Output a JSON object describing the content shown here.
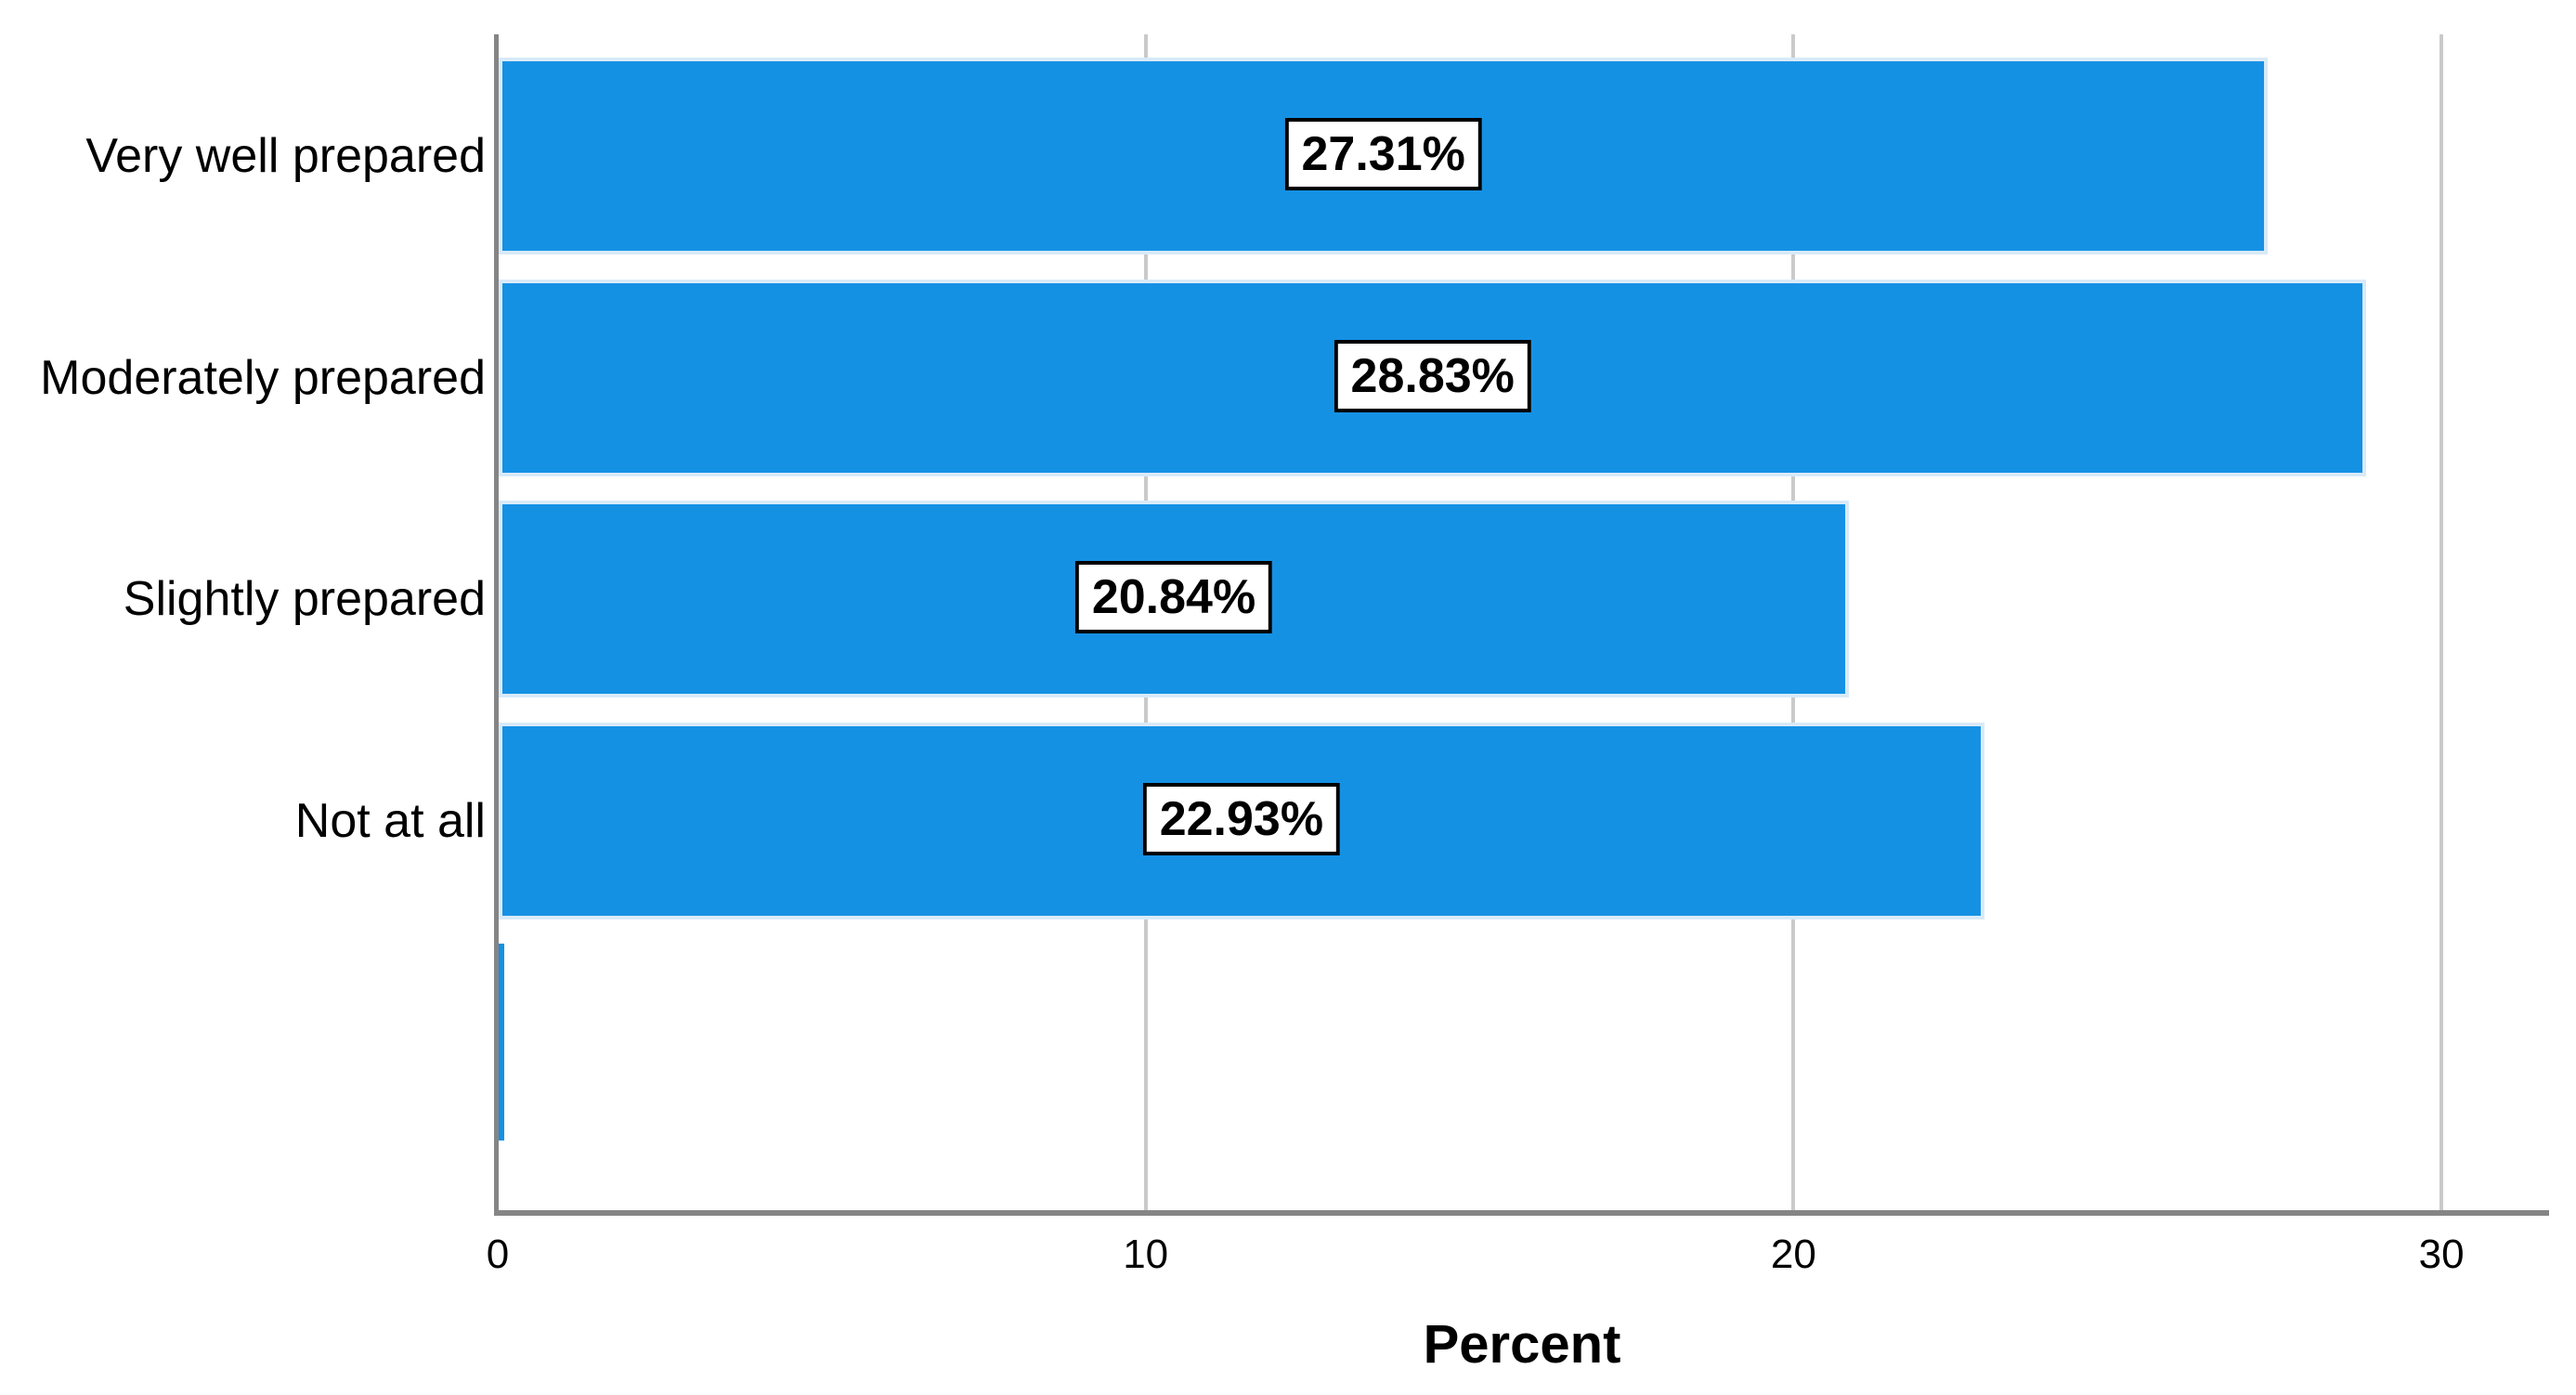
{
  "chart_data": {
    "type": "bar",
    "orientation": "horizontal",
    "title": "",
    "xlabel": "Percent",
    "ylabel": "",
    "categories": [
      "Very well prepared",
      "Moderately prepared",
      "Slightly prepared",
      "Not at all",
      ""
    ],
    "values": [
      27.31,
      28.83,
      20.84,
      22.93,
      0.09
    ],
    "data_labels": [
      "27.31%",
      "28.83%",
      "20.84%",
      "22.93%",
      ""
    ],
    "show_data_labels": [
      true,
      true,
      true,
      true,
      false
    ],
    "xticks": [
      0,
      10,
      20,
      30
    ],
    "xlim": [
      0,
      31.6
    ],
    "grid": "vertical gridlines at 10, 20, 30",
    "legend_position": "none",
    "colors": {
      "bar_fill": "#1591E4",
      "bar_edge": "#D9EAF8",
      "axis_line": "#858585",
      "gridline": "#CACACA",
      "text": "#000000",
      "data_label_bg": "#FFFFFF",
      "data_label_border": "#000000",
      "background": "#FFFFFF"
    }
  }
}
